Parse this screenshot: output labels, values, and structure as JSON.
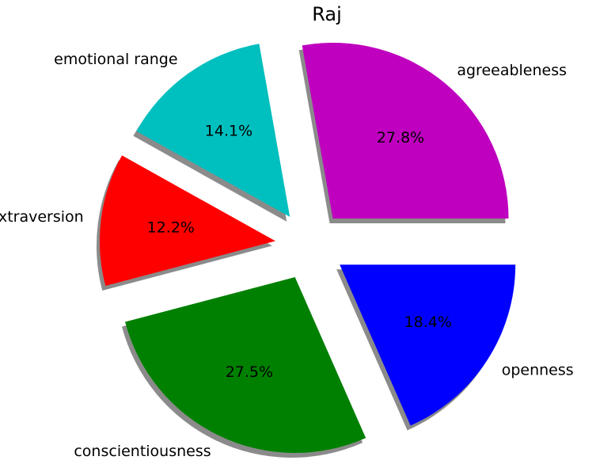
{
  "chart_data": {
    "type": "pie",
    "title": "Raj",
    "slices": [
      {
        "label": "agreeableness",
        "percent": 27.8,
        "value": 27.8,
        "color": "#bf00bf"
      },
      {
        "label": "emotional range",
        "percent": 14.1,
        "value": 14.1,
        "color": "#00bfbf"
      },
      {
        "label": "extraversion",
        "percent": 12.2,
        "value": 12.2,
        "color": "#ff0000"
      },
      {
        "label": "conscientiousness",
        "percent": 27.5,
        "value": 27.5,
        "color": "#008000"
      },
      {
        "label": "openness",
        "percent": 18.4,
        "value": 18.4,
        "color": "#0000ff"
      }
    ],
    "start_angle": 0,
    "direction": "counterclockwise",
    "exploded": true,
    "shadow": true,
    "autopct_format": "%1.1f%%"
  }
}
